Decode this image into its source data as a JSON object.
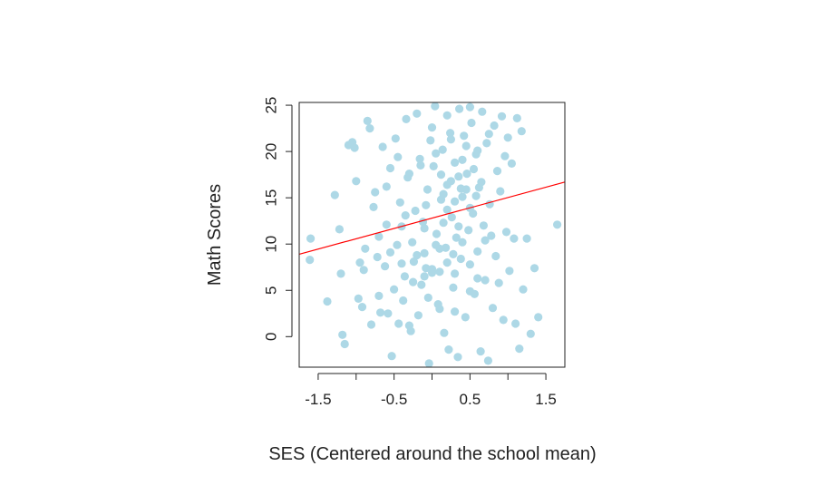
{
  "chart_data": {
    "type": "scatter",
    "title": "",
    "xlabel": "SES (Centered around the school mean)",
    "ylabel": "Math Scores",
    "xlim": [
      -1.75,
      1.75
    ],
    "ylim": [
      -3.3,
      25.3
    ],
    "xticks": [
      -1.5,
      -0.5,
      0.5,
      1.5
    ],
    "xtick_labels": [
      "-1.5",
      "-0.5",
      "0.5",
      "1.5"
    ],
    "yticks": [
      0,
      5,
      10,
      15,
      20,
      25
    ],
    "ytick_labels": [
      "0",
      "5",
      "10",
      "15",
      "20",
      "25"
    ],
    "grid": false,
    "point_color": "#add8e6",
    "line_color": "#ff0000",
    "regression_line": {
      "x": [
        -1.75,
        1.75
      ],
      "y": [
        8.9,
        16.7
      ]
    },
    "points": [
      [
        -1.6,
        10.6
      ],
      [
        -1.61,
        8.3
      ],
      [
        -1.38,
        3.8
      ],
      [
        -1.28,
        15.3
      ],
      [
        -1.22,
        11.6
      ],
      [
        -1.2,
        6.8
      ],
      [
        -1.18,
        0.2
      ],
      [
        -1.15,
        -0.8
      ],
      [
        -1.1,
        20.7
      ],
      [
        -1.05,
        21.0
      ],
      [
        -1.02,
        20.4
      ],
      [
        -1.0,
        16.8
      ],
      [
        -0.97,
        4.1
      ],
      [
        -0.95,
        8.0
      ],
      [
        -0.92,
        3.2
      ],
      [
        -0.9,
        7.2
      ],
      [
        -0.88,
        9.5
      ],
      [
        -0.85,
        23.3
      ],
      [
        -0.82,
        22.5
      ],
      [
        -0.8,
        1.3
      ],
      [
        -0.77,
        14.0
      ],
      [
        -0.75,
        15.6
      ],
      [
        -0.72,
        8.6
      ],
      [
        -0.7,
        4.4
      ],
      [
        -0.68,
        2.6
      ],
      [
        -0.65,
        20.5
      ],
      [
        -0.62,
        7.6
      ],
      [
        -0.6,
        12.1
      ],
      [
        -0.58,
        2.5
      ],
      [
        -0.55,
        18.2
      ],
      [
        -0.53,
        -2.1
      ],
      [
        -0.5,
        5.1
      ],
      [
        -0.48,
        21.4
      ],
      [
        -0.46,
        9.9
      ],
      [
        -0.44,
        1.4
      ],
      [
        -0.42,
        14.5
      ],
      [
        -0.4,
        11.9
      ],
      [
        -0.38,
        3.9
      ],
      [
        -0.36,
        6.5
      ],
      [
        -0.34,
        23.5
      ],
      [
        -0.32,
        17.2
      ],
      [
        -0.3,
        1.2
      ],
      [
        -0.28,
        0.6
      ],
      [
        -0.26,
        10.2
      ],
      [
        -0.24,
        8.1
      ],
      [
        -0.22,
        13.6
      ],
      [
        -0.2,
        24.1
      ],
      [
        -0.18,
        2.3
      ],
      [
        -0.16,
        19.2
      ],
      [
        -0.14,
        5.6
      ],
      [
        -0.12,
        12.4
      ],
      [
        -0.1,
        9.0
      ],
      [
        -0.08,
        7.4
      ],
      [
        -0.06,
        15.9
      ],
      [
        -0.04,
        -2.9
      ],
      [
        -0.02,
        21.2
      ],
      [
        0.0,
        6.9
      ],
      [
        0.02,
        18.4
      ],
      [
        0.04,
        24.9
      ],
      [
        0.06,
        11.1
      ],
      [
        0.08,
        3.5
      ],
      [
        0.1,
        7.0
      ],
      [
        0.12,
        14.8
      ],
      [
        0.14,
        20.2
      ],
      [
        0.16,
        0.4
      ],
      [
        0.18,
        9.6
      ],
      [
        0.2,
        16.4
      ],
      [
        0.22,
        -1.4
      ],
      [
        0.24,
        22.0
      ],
      [
        0.26,
        12.9
      ],
      [
        0.28,
        5.3
      ],
      [
        0.3,
        18.8
      ],
      [
        0.32,
        10.7
      ],
      [
        0.34,
        -2.2
      ],
      [
        0.36,
        24.6
      ],
      [
        0.38,
        8.4
      ],
      [
        0.4,
        15.1
      ],
      [
        0.42,
        21.7
      ],
      [
        0.44,
        2.1
      ],
      [
        0.46,
        17.6
      ],
      [
        0.48,
        11.5
      ],
      [
        0.5,
        7.8
      ],
      [
        0.52,
        23.1
      ],
      [
        0.54,
        13.3
      ],
      [
        0.56,
        4.6
      ],
      [
        0.58,
        19.7
      ],
      [
        0.6,
        9.2
      ],
      [
        0.62,
        16.1
      ],
      [
        0.64,
        -1.6
      ],
      [
        0.66,
        24.3
      ],
      [
        0.68,
        12.0
      ],
      [
        0.7,
        6.1
      ],
      [
        0.72,
        20.9
      ],
      [
        0.74,
        -2.6
      ],
      [
        0.76,
        14.3
      ],
      [
        0.78,
        10.9
      ],
      [
        0.8,
        3.1
      ],
      [
        0.82,
        22.8
      ],
      [
        0.84,
        8.7
      ],
      [
        0.86,
        17.9
      ],
      [
        0.88,
        5.8
      ],
      [
        0.9,
        15.7
      ],
      [
        0.92,
        23.8
      ],
      [
        0.94,
        1.8
      ],
      [
        0.96,
        19.5
      ],
      [
        0.98,
        11.3
      ],
      [
        1.0,
        21.5
      ],
      [
        1.02,
        7.1
      ],
      [
        1.05,
        18.7
      ],
      [
        1.08,
        10.6
      ],
      [
        1.1,
        1.4
      ],
      [
        1.12,
        23.6
      ],
      [
        1.15,
        -1.3
      ],
      [
        1.18,
        22.2
      ],
      [
        1.2,
        5.1
      ],
      [
        1.25,
        10.6
      ],
      [
        1.3,
        0.3
      ],
      [
        1.35,
        7.4
      ],
      [
        1.4,
        2.1
      ],
      [
        1.65,
        12.1
      ],
      [
        -0.2,
        8.8
      ],
      [
        -0.1,
        6.5
      ],
      [
        0.0,
        7.3
      ],
      [
        0.1,
        9.5
      ],
      [
        0.2,
        8.0
      ],
      [
        0.3,
        6.8
      ],
      [
        0.4,
        10.2
      ],
      [
        0.15,
        15.4
      ],
      [
        0.25,
        16.8
      ],
      [
        0.35,
        17.3
      ],
      [
        0.45,
        15.9
      ],
      [
        0.3,
        14.6
      ],
      [
        0.2,
        13.7
      ],
      [
        0.4,
        19.1
      ],
      [
        -0.3,
        17.6
      ],
      [
        -0.15,
        18.5
      ],
      [
        0.05,
        19.8
      ],
      [
        0.25,
        21.3
      ],
      [
        0.45,
        20.6
      ],
      [
        0.55,
        18.1
      ],
      [
        0.65,
        16.7
      ],
      [
        -0.05,
        4.2
      ],
      [
        0.1,
        3.0
      ],
      [
        0.3,
        2.7
      ],
      [
        0.5,
        4.9
      ],
      [
        0.6,
        6.3
      ],
      [
        -0.25,
        5.9
      ],
      [
        0.35,
        11.9
      ],
      [
        0.15,
        12.3
      ],
      [
        -0.1,
        11.7
      ],
      [
        0.5,
        13.9
      ],
      [
        0.7,
        10.4
      ],
      [
        0.6,
        20.1
      ],
      [
        0.75,
        21.9
      ],
      [
        -0.45,
        19.4
      ],
      [
        -0.6,
        16.2
      ],
      [
        -0.35,
        13.1
      ],
      [
        0.0,
        22.6
      ],
      [
        0.2,
        23.9
      ],
      [
        0.5,
        24.8
      ],
      [
        -0.7,
        10.8
      ],
      [
        -0.55,
        9.1
      ],
      [
        -0.4,
        7.9
      ],
      [
        0.05,
        9.9
      ],
      [
        0.28,
        8.9
      ],
      [
        -0.08,
        14.2
      ],
      [
        0.12,
        17.5
      ],
      [
        0.38,
        16.0
      ],
      [
        0.58,
        15.2
      ]
    ]
  }
}
